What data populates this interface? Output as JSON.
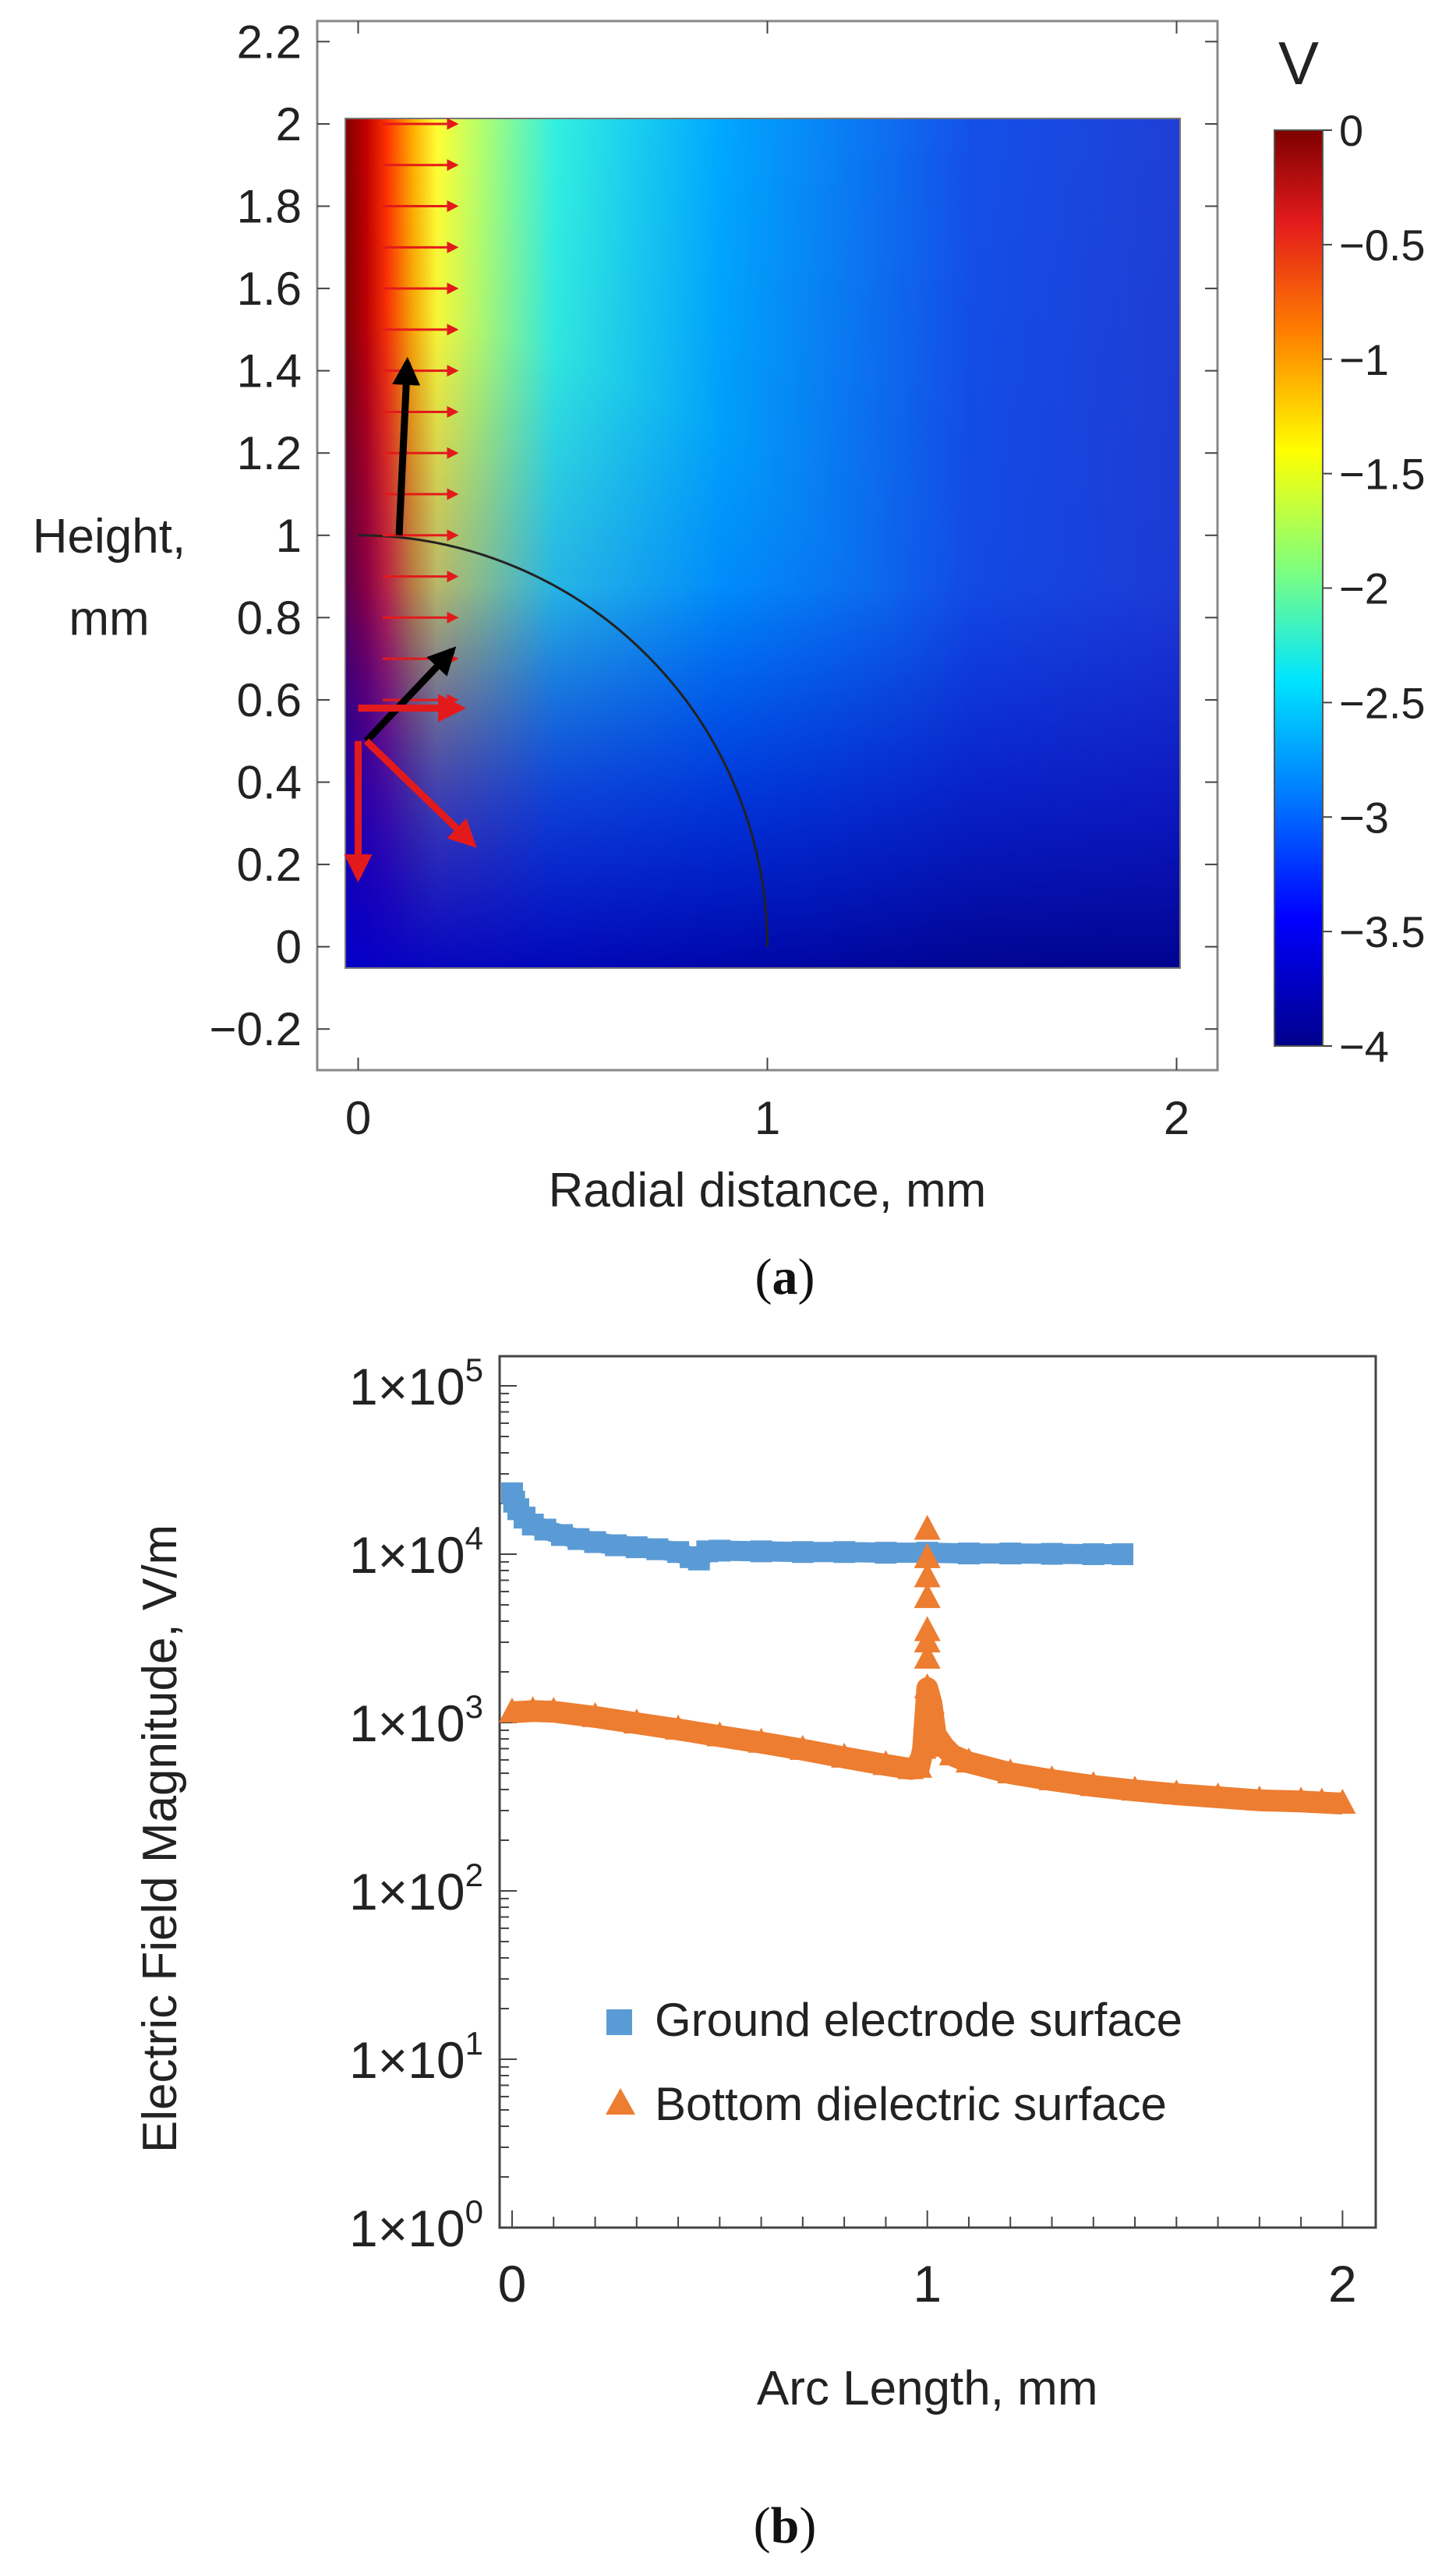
{
  "chart_data": [
    {
      "type": "heatmap",
      "panel_label": "a",
      "xlabel": "Radial distance, mm",
      "ylabel_line1": "Height,",
      "ylabel_line2": "mm",
      "xlim": [
        -0.1,
        2.1
      ],
      "ylim": [
        -0.3,
        2.25
      ],
      "xticks": [
        0,
        1,
        2
      ],
      "xtick_labels": [
        "0",
        "1",
        "2"
      ],
      "yticks": [
        -0.2,
        0,
        0.2,
        0.4,
        0.6,
        0.8,
        1,
        1.2,
        1.4,
        1.6,
        1.8,
        2,
        2.2
      ],
      "ytick_labels": [
        "−0.2",
        "0",
        "0.2",
        "0.4",
        "0.6",
        "0.8",
        "1",
        "1.2",
        "1.4",
        "1.6",
        "1.8",
        "2",
        "2.2"
      ],
      "domain": {
        "x": [
          0,
          2
        ],
        "y": [
          -0.05,
          2
        ]
      },
      "field": "electric potential, falls from 0 V at the r = 0 axis to about -4 V far away",
      "colorbar": {
        "unit": "V",
        "range": [
          -4,
          0
        ],
        "ticks": [
          0,
          -0.5,
          -1,
          -1.5,
          -2,
          -2.5,
          -3,
          -3.5,
          -4
        ],
        "tick_labels": [
          "0",
          "−0.5",
          "−1",
          "−1.5",
          "−2",
          "−2.5",
          "−3",
          "−3.5",
          "−4"
        ],
        "colors": [
          "#7f0000",
          "#e31a1c",
          "#ff7f00",
          "#ffff00",
          "#7fff7f",
          "#00e5ff",
          "#0080ff",
          "#0000ff",
          "#00008b"
        ]
      },
      "boundary_arc": {
        "center": [
          0,
          0
        ],
        "radius": 1,
        "color": "#222222"
      },
      "small_arrows": {
        "x": 0.06,
        "y_values": [
          0.6,
          0.7,
          0.8,
          0.9,
          1.0,
          1.1,
          1.2,
          1.3,
          1.4,
          1.5,
          1.6,
          1.7,
          1.8,
          1.9,
          2.0
        ],
        "dx": 0.18,
        "color": "#e31a1c"
      },
      "vectors": [
        {
          "from": [
            0.1,
            1.0
          ],
          "to": [
            0.12,
            1.42
          ],
          "color": "#000000"
        },
        {
          "from": [
            0.02,
            0.5
          ],
          "to": [
            0.23,
            0.72
          ],
          "color": "#000000"
        },
        {
          "from": [
            0.02,
            0.5
          ],
          "to": [
            0.28,
            0.25
          ],
          "color": "#e31a1c"
        },
        {
          "from": [
            0.0,
            0.5
          ],
          "to": [
            0.0,
            0.17
          ],
          "color": "#e31a1c"
        },
        {
          "from": [
            0.0,
            0.58
          ],
          "to": [
            0.25,
            0.58
          ],
          "color": "#e31a1c"
        }
      ]
    },
    {
      "type": "scatter",
      "panel_label": "b",
      "xlabel": "Arc Length, mm",
      "ylabel": "Electric Field Magnitude, V/m",
      "xlim": [
        -0.03,
        2.08
      ],
      "yscale": "log",
      "ylim": [
        1,
        150000
      ],
      "xticks": [
        0,
        1,
        2
      ],
      "xtick_labels": [
        "0",
        "1",
        "2"
      ],
      "ytick_labels": [
        {
          "base": "1×10",
          "exp": "0"
        },
        {
          "base": "1×10",
          "exp": "1"
        },
        {
          "base": "1×10",
          "exp": "2"
        },
        {
          "base": "1×10",
          "exp": "3"
        },
        {
          "base": "1×10",
          "exp": "4"
        },
        {
          "base": "1×10",
          "exp": "5"
        }
      ],
      "legend": {
        "placement": "lower-center"
      },
      "series": [
        {
          "name": "Ground electrode surface",
          "marker": "square",
          "color": "#5b9bd5",
          "points": [
            [
              0.0,
              23000
            ],
            [
              0.005,
              20500
            ],
            [
              0.015,
              18500
            ],
            [
              0.03,
              16500
            ],
            [
              0.05,
              15000
            ],
            [
              0.08,
              14000
            ],
            [
              0.12,
              13000
            ],
            [
              0.16,
              12300
            ],
            [
              0.2,
              11800
            ],
            [
              0.25,
              11300
            ],
            [
              0.3,
              11000
            ],
            [
              0.35,
              10700
            ],
            [
              0.4,
              10300
            ],
            [
              0.43,
              9600
            ],
            [
              0.45,
              9300
            ],
            [
              0.47,
              10400
            ],
            [
              0.5,
              10500
            ],
            [
              0.6,
              10400
            ],
            [
              0.7,
              10300
            ],
            [
              0.8,
              10300
            ],
            [
              0.9,
              10200
            ],
            [
              1.0,
              10200
            ],
            [
              1.1,
              10100
            ],
            [
              1.2,
              10100
            ],
            [
              1.3,
              10050
            ],
            [
              1.4,
              10000
            ],
            [
              1.47,
              10000
            ]
          ]
        },
        {
          "name": "Bottom dielectric surface",
          "marker": "triangle",
          "color": "#ed7d31",
          "points": [
            [
              0.0,
              1150
            ],
            [
              0.05,
              1170
            ],
            [
              0.1,
              1160
            ],
            [
              0.2,
              1080
            ],
            [
              0.3,
              990
            ],
            [
              0.4,
              910
            ],
            [
              0.5,
              830
            ],
            [
              0.6,
              760
            ],
            [
              0.7,
              690
            ],
            [
              0.8,
              620
            ],
            [
              0.9,
              560
            ],
            [
              0.96,
              530
            ],
            [
              0.98,
              540
            ],
            [
              0.99,
              700
            ],
            [
              1.0,
              1600
            ],
            [
              1.0,
              2400
            ],
            [
              1.0,
              3000
            ],
            [
              1.0,
              3500
            ],
            [
              1.0,
              5500
            ],
            [
              1.0,
              7300
            ],
            [
              1.0,
              9500
            ],
            [
              1.0,
              14000
            ],
            [
              1.01,
              1300
            ],
            [
              1.02,
              850
            ],
            [
              1.04,
              720
            ],
            [
              1.06,
              640
            ],
            [
              1.1,
              580
            ],
            [
              1.2,
              500
            ],
            [
              1.3,
              455
            ],
            [
              1.4,
              420
            ],
            [
              1.5,
              395
            ],
            [
              1.6,
              375
            ],
            [
              1.7,
              360
            ],
            [
              1.8,
              345
            ],
            [
              1.9,
              340
            ],
            [
              1.95,
              335
            ],
            [
              2.0,
              330
            ]
          ]
        }
      ]
    }
  ]
}
